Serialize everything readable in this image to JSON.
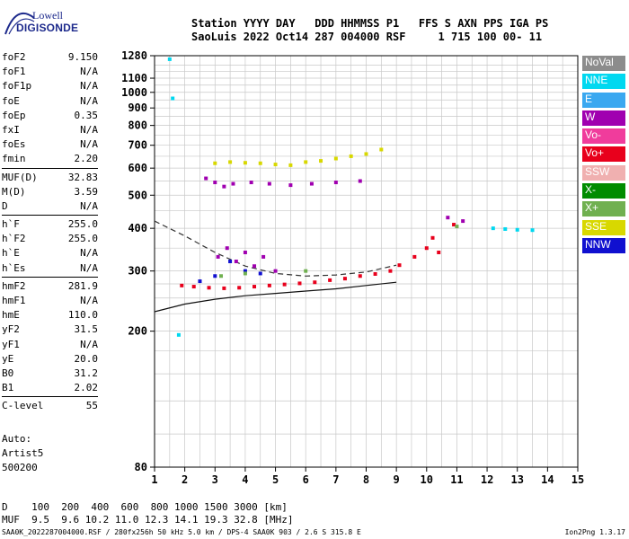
{
  "logo": {
    "line1": "Lowell",
    "line2": "DIGISONDE"
  },
  "header": {
    "line1": "Station YYYY DAY   DDD HHMMSS P1   FFS S AXN PPS IGA PS",
    "line2": "SaoLuis 2022 Oct14 287 004000 RSF     1 715 100 00- 11"
  },
  "params": {
    "group1": [
      {
        "k": "foF2",
        "v": "9.150"
      },
      {
        "k": "foF1",
        "v": "N/A"
      },
      {
        "k": "foF1p",
        "v": "N/A"
      },
      {
        "k": "foE",
        "v": "N/A"
      },
      {
        "k": "foEp",
        "v": "0.35"
      },
      {
        "k": "fxI",
        "v": "N/A"
      },
      {
        "k": "foEs",
        "v": "N/A"
      },
      {
        "k": "fmin",
        "v": "2.20"
      }
    ],
    "group2": [
      {
        "k": "MUF(D)",
        "v": "32.83"
      },
      {
        "k": "M(D)",
        "v": "3.59"
      },
      {
        "k": "D",
        "v": "N/A"
      }
    ],
    "group3": [
      {
        "k": "h`F",
        "v": "255.0"
      },
      {
        "k": "h`F2",
        "v": "255.0"
      },
      {
        "k": "h`E",
        "v": "N/A"
      },
      {
        "k": "h`Es",
        "v": "N/A"
      }
    ],
    "group4": [
      {
        "k": "hmF2",
        "v": "281.9"
      },
      {
        "k": "hmF1",
        "v": "N/A"
      },
      {
        "k": "hmE",
        "v": "110.0"
      },
      {
        "k": "yF2",
        "v": "31.5"
      },
      {
        "k": "yF1",
        "v": "N/A"
      },
      {
        "k": "yE",
        "v": "20.0"
      },
      {
        "k": "B0",
        "v": "31.2"
      },
      {
        "k": "B1",
        "v": "2.02"
      }
    ],
    "group5": [
      {
        "k": "C-level",
        "v": "55"
      }
    ]
  },
  "auto": {
    "line1": "Auto:",
    "line2": "Artist5",
    "line3": "500200"
  },
  "bottom": {
    "line1": "D    100  200  400  600  800 1000 1500 3000 [km]",
    "line2": "MUF  9.5  9.6 10.2 11.0 12.3 14.1 19.3 32.8 [MHz]"
  },
  "footer": "SAA0K_2022287004000.RSF / 280fx256h 50 kHz 5.0 km / DPS-4 SAA0K 903 / 2.6 S 315.8 E",
  "version": "Ion2Png 1.3.17",
  "legend": [
    {
      "label": "NoVal",
      "color": "#8c8c8c"
    },
    {
      "label": "NNE",
      "color": "#00d8f0"
    },
    {
      "label": "E",
      "color": "#3aa8f0"
    },
    {
      "label": "W",
      "color": "#a000b0"
    },
    {
      "label": "Vo-",
      "color": "#f03c9c"
    },
    {
      "label": "Vo+",
      "color": "#e8001c"
    },
    {
      "label": "SSW",
      "color": "#f0b0b0"
    },
    {
      "label": "X-",
      "color": "#008c00"
    },
    {
      "label": "X+",
      "color": "#70b050"
    },
    {
      "label": "SSE",
      "color": "#d8d800"
    },
    {
      "label": "NNW",
      "color": "#1010d0"
    }
  ],
  "chart_data": {
    "type": "scatter",
    "title": "",
    "xlabel": "",
    "ylabel": "",
    "xlim": [
      1,
      15
    ],
    "ylim": [
      80,
      1280
    ],
    "y_scale": "log",
    "x_ticks": [
      1,
      2,
      3,
      4,
      5,
      6,
      7,
      8,
      9,
      10,
      11,
      12,
      13,
      14,
      15
    ],
    "y_ticks": [
      80,
      200,
      300,
      400,
      500,
      600,
      700,
      800,
      900,
      1000,
      1100,
      1280
    ],
    "grid": true,
    "legend_position": "right",
    "series": [
      {
        "name": "Vo+",
        "points": [
          [
            1.9,
            272
          ],
          [
            2.3,
            270
          ],
          [
            2.8,
            268
          ],
          [
            3.3,
            267
          ],
          [
            3.8,
            268
          ],
          [
            4.3,
            270
          ],
          [
            4.8,
            272
          ],
          [
            5.3,
            274
          ],
          [
            5.8,
            276
          ],
          [
            6.3,
            278
          ],
          [
            6.8,
            282
          ],
          [
            7.3,
            285
          ],
          [
            7.8,
            290
          ],
          [
            8.3,
            294
          ],
          [
            8.8,
            300
          ],
          [
            9.1,
            312
          ],
          [
            9.6,
            330
          ],
          [
            10.0,
            350
          ],
          [
            10.2,
            375
          ],
          [
            10.4,
            340
          ],
          [
            10.9,
            410
          ]
        ]
      },
      {
        "name": "W",
        "points": [
          [
            2.7,
            560
          ],
          [
            3.0,
            545
          ],
          [
            3.3,
            530
          ],
          [
            3.6,
            540
          ],
          [
            4.2,
            545
          ],
          [
            4.8,
            540
          ],
          [
            5.5,
            535
          ],
          [
            6.2,
            540
          ],
          [
            7.0,
            545
          ],
          [
            7.8,
            550
          ],
          [
            3.1,
            330
          ],
          [
            3.4,
            350
          ],
          [
            3.7,
            320
          ],
          [
            4.0,
            340
          ],
          [
            4.3,
            310
          ],
          [
            4.6,
            330
          ],
          [
            5.0,
            300
          ],
          [
            10.7,
            430
          ],
          [
            11.2,
            420
          ]
        ]
      },
      {
        "name": "SSE",
        "points": [
          [
            3.0,
            620
          ],
          [
            3.5,
            625
          ],
          [
            4.0,
            622
          ],
          [
            4.5,
            620
          ],
          [
            5.0,
            615
          ],
          [
            5.5,
            612
          ],
          [
            6.0,
            625
          ],
          [
            6.5,
            630
          ],
          [
            7.0,
            640
          ],
          [
            7.5,
            650
          ],
          [
            8.0,
            660
          ],
          [
            8.5,
            680
          ]
        ]
      },
      {
        "name": "NNW",
        "points": [
          [
            2.5,
            280
          ],
          [
            3.0,
            290
          ],
          [
            3.5,
            320
          ],
          [
            4.0,
            300
          ],
          [
            4.5,
            295
          ]
        ]
      },
      {
        "name": "X+",
        "points": [
          [
            3.2,
            290
          ],
          [
            4.0,
            295
          ],
          [
            6.0,
            300
          ],
          [
            11.0,
            405
          ]
        ]
      },
      {
        "name": "NNE",
        "points": [
          [
            1.5,
            1250
          ],
          [
            1.6,
            960
          ],
          [
            1.8,
            195
          ],
          [
            12.2,
            400
          ],
          [
            12.6,
            398
          ],
          [
            13.0,
            396
          ],
          [
            13.5,
            395
          ]
        ]
      }
    ],
    "curves": [
      {
        "name": "profile",
        "style": "solid",
        "points": [
          [
            1,
            228
          ],
          [
            2,
            240
          ],
          [
            3,
            248
          ],
          [
            4,
            254
          ],
          [
            5,
            258
          ],
          [
            6,
            262
          ],
          [
            7,
            266
          ],
          [
            8,
            272
          ],
          [
            9,
            278
          ]
        ]
      },
      {
        "name": "o-trace",
        "style": "dashed",
        "points": [
          [
            1,
            420
          ],
          [
            2,
            380
          ],
          [
            3,
            340
          ],
          [
            4,
            310
          ],
          [
            5,
            295
          ],
          [
            6,
            290
          ],
          [
            7,
            292
          ],
          [
            8,
            298
          ],
          [
            9,
            312
          ]
        ]
      }
    ]
  }
}
